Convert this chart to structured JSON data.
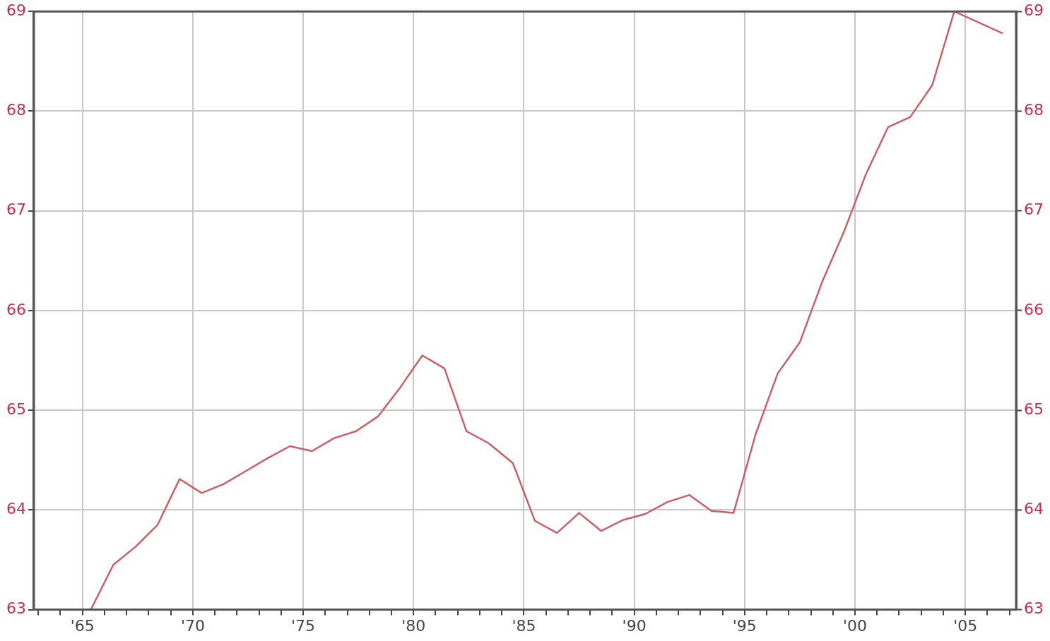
{
  "chart_data": {
    "type": "line",
    "x": [
      1965.4,
      1966.4,
      1967.4,
      1968.4,
      1969.4,
      1970.4,
      1971.4,
      1972.4,
      1973.4,
      1974.4,
      1975.4,
      1976.4,
      1977.4,
      1978.4,
      1979.4,
      1980.4,
      1981.4,
      1982.4,
      1983.4,
      1984.5,
      1985.5,
      1986.5,
      1987.5,
      1988.5,
      1989.5,
      1990.5,
      1991.5,
      1992.5,
      1993.5,
      1994.5,
      1995.5,
      1996.5,
      1997.5,
      1998.5,
      1999.5,
      2000.5,
      2001.5,
      2002.5,
      2003.5,
      2004.5,
      2006.7
    ],
    "series": [
      {
        "color": "#c8606a",
        "values": [
          63.01,
          63.45,
          63.63,
          63.85,
          64.31,
          64.17,
          64.26,
          64.39,
          64.52,
          64.64,
          64.59,
          64.72,
          64.79,
          64.94,
          65.23,
          65.55,
          65.42,
          64.79,
          64.67,
          64.47,
          63.89,
          63.77,
          63.97,
          63.79,
          63.9,
          63.96,
          64.08,
          64.15,
          63.99,
          63.97,
          64.76,
          65.37,
          65.68,
          66.28,
          66.79,
          67.37,
          67.84,
          67.94,
          68.26,
          69.0,
          68.78
        ]
      }
    ],
    "xlim": [
      1962.8,
      2007.3
    ],
    "xticks": [
      {
        "value": 1963,
        "label": null
      },
      {
        "value": 1964,
        "label": null
      },
      {
        "value": 1965,
        "label": "'65"
      },
      {
        "value": 1966,
        "label": null
      },
      {
        "value": 1967,
        "label": null
      },
      {
        "value": 1968,
        "label": null
      },
      {
        "value": 1969,
        "label": null
      },
      {
        "value": 1970,
        "label": "'70"
      },
      {
        "value": 1971,
        "label": null
      },
      {
        "value": 1972,
        "label": null
      },
      {
        "value": 1973,
        "label": null
      },
      {
        "value": 1974,
        "label": null
      },
      {
        "value": 1975,
        "label": "'75"
      },
      {
        "value": 1976,
        "label": null
      },
      {
        "value": 1977,
        "label": null
      },
      {
        "value": 1978,
        "label": null
      },
      {
        "value": 1979,
        "label": null
      },
      {
        "value": 1980,
        "label": "'80"
      },
      {
        "value": 1981,
        "label": null
      },
      {
        "value": 1982,
        "label": null
      },
      {
        "value": 1983,
        "label": null
      },
      {
        "value": 1984,
        "label": null
      },
      {
        "value": 1985,
        "label": "'85"
      },
      {
        "value": 1986,
        "label": null
      },
      {
        "value": 1987,
        "label": null
      },
      {
        "value": 1988,
        "label": null
      },
      {
        "value": 1989,
        "label": null
      },
      {
        "value": 1990,
        "label": "'90"
      },
      {
        "value": 1991,
        "label": null
      },
      {
        "value": 1992,
        "label": null
      },
      {
        "value": 1993,
        "label": null
      },
      {
        "value": 1994,
        "label": null
      },
      {
        "value": 1995,
        "label": "'95"
      },
      {
        "value": 1996,
        "label": null
      },
      {
        "value": 1997,
        "label": null
      },
      {
        "value": 1998,
        "label": null
      },
      {
        "value": 1999,
        "label": null
      },
      {
        "value": 2000,
        "label": "'00"
      },
      {
        "value": 2001,
        "label": null
      },
      {
        "value": 2002,
        "label": null
      },
      {
        "value": 2003,
        "label": null
      },
      {
        "value": 2004,
        "label": null
      },
      {
        "value": 2005,
        "label": "'05"
      },
      {
        "value": 2006,
        "label": null
      },
      {
        "value": 2007,
        "label": null
      }
    ],
    "ylim": [
      63,
      69
    ],
    "yticks": [
      63,
      64,
      65,
      66,
      67,
      68,
      69
    ],
    "y2lim": [
      63,
      69
    ],
    "y2ticks": [
      63,
      64,
      65,
      66,
      67,
      68,
      69
    ],
    "grid": true,
    "legend": false,
    "marker": "none",
    "line_style": "solid"
  }
}
